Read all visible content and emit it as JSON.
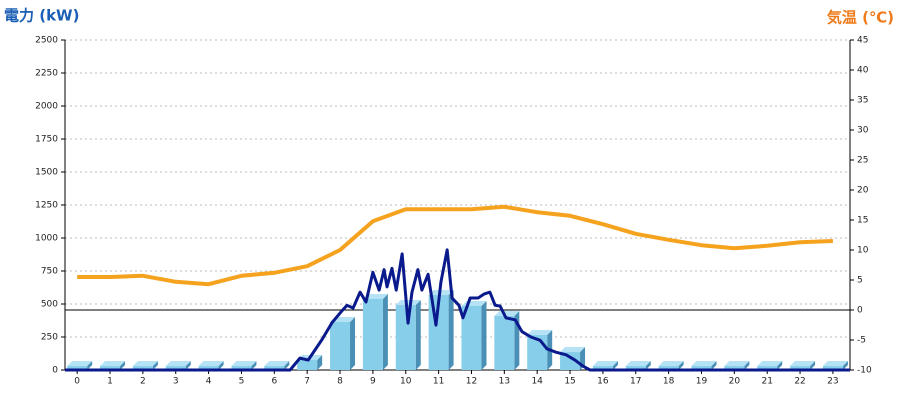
{
  "chart_data": {
    "type": "combo",
    "y_label": "電力 (kW)",
    "y2_label": "気温 (℃)",
    "x": [
      0,
      1,
      2,
      3,
      4,
      5,
      6,
      7,
      8,
      9,
      10,
      11,
      12,
      13,
      14,
      15,
      16,
      17,
      18,
      19,
      20,
      21,
      22,
      23
    ],
    "xlim": [
      -0.37,
      23.52
    ],
    "xticks": [
      0,
      1,
      2,
      3,
      4,
      5,
      6,
      7,
      8,
      9,
      10,
      11,
      12,
      13,
      14,
      15,
      16,
      17,
      18,
      19,
      20,
      21,
      22,
      23
    ],
    "ylim": [
      0,
      2500
    ],
    "yticks": [
      0,
      250,
      500,
      750,
      1000,
      1250,
      1500,
      1750,
      2000,
      2250,
      2500
    ],
    "y2lim": [
      -10,
      45
    ],
    "y2ticks": [
      -10,
      -5,
      0,
      5,
      10,
      15,
      20,
      25,
      30,
      35,
      40,
      45
    ],
    "grid": true,
    "series": [
      {
        "type": "bar",
        "color": "#87ceeb",
        "values": [
          30,
          30,
          30,
          30,
          30,
          30,
          30,
          76,
          364,
          538,
          492,
          568,
          485,
          409,
          265,
          136,
          30,
          30,
          30,
          30,
          30,
          30,
          30,
          30
        ]
      },
      {
        "type": "line",
        "axis": "y2",
        "color": "#f5a21f",
        "values": [
          5.5,
          5.5,
          5.7,
          4.7,
          4.3,
          5.7,
          6.2,
          7.3,
          10,
          14.8,
          16.8,
          16.8,
          16.8,
          17.2,
          16.3,
          15.7,
          14.3,
          12.7,
          11.7,
          10.8,
          10.3,
          10.7,
          11.3,
          11.5
        ]
      },
      {
        "type": "line",
        "color": "#0a1a8c",
        "x": [
          -0.37,
          6.48,
          6.78,
          7.03,
          7.45,
          7.76,
          8.03,
          8.21,
          8.4,
          8.61,
          8.79,
          9.0,
          9.19,
          9.34,
          9.43,
          9.58,
          9.71,
          9.89,
          10.07,
          10.19,
          10.37,
          10.49,
          10.68,
          10.92,
          11.07,
          11.26,
          11.41,
          11.62,
          11.74,
          11.96,
          12.2,
          12.38,
          12.56,
          12.72,
          12.87,
          13.05,
          13.33,
          13.54,
          13.81,
          14.09,
          14.3,
          14.57,
          14.88,
          15.15,
          15.39,
          15.61,
          23.52
        ],
        "values": [
          0,
          0,
          90,
          75,
          230,
          360,
          440,
          490,
          470,
          590,
          515,
          740,
          605,
          760,
          630,
          770,
          605,
          880,
          355,
          590,
          760,
          605,
          725,
          340,
          665,
          910,
          545,
          490,
          395,
          545,
          545,
          575,
          590,
          490,
          485,
          395,
          380,
          290,
          250,
          225,
          160,
          135,
          115,
          75,
          30,
          0,
          0
        ]
      }
    ]
  }
}
